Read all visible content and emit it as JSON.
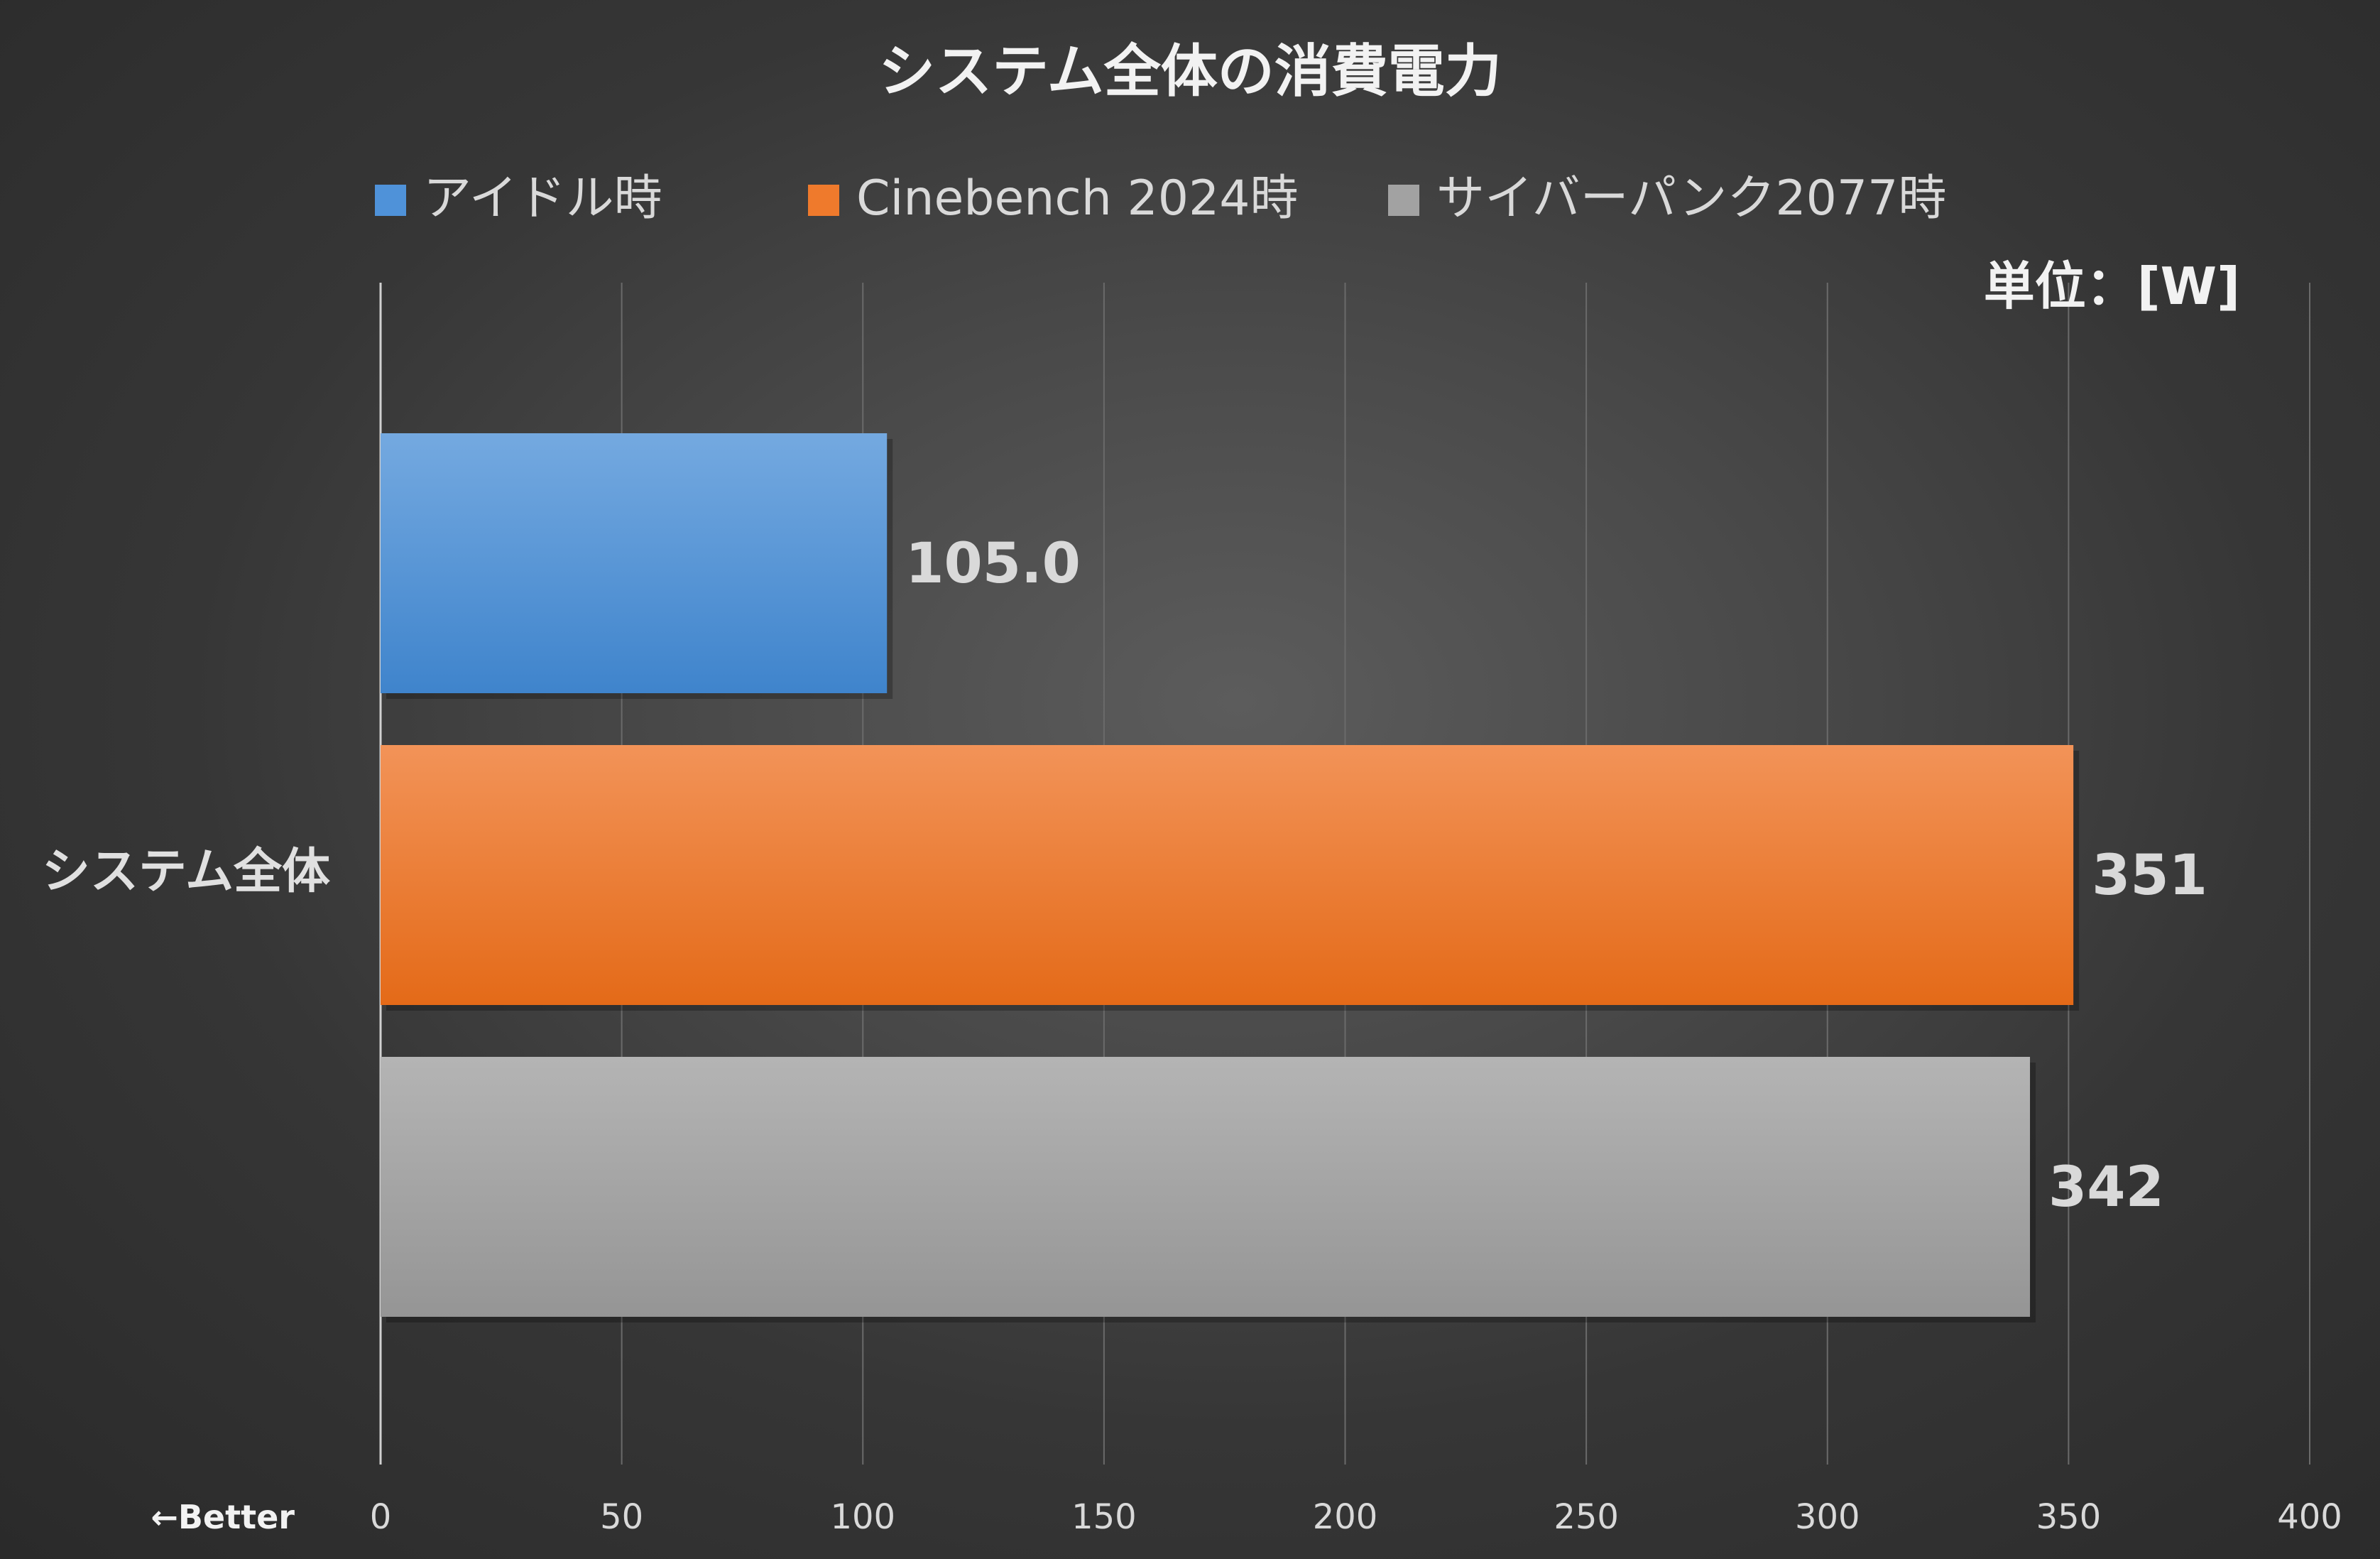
{
  "chart_data": {
    "type": "bar",
    "orientation": "horizontal",
    "title": "システム全体の消費電力",
    "unit_note": "単位：[W]",
    "categories": [
      "システム全体"
    ],
    "series": [
      {
        "name": "アイドル時",
        "values": [
          105.0
        ],
        "value_labels": [
          "105.0"
        ],
        "color": "#4f92d9"
      },
      {
        "name": "Cinebench 2024時",
        "values": [
          351
        ],
        "value_labels": [
          "351"
        ],
        "color": "#ef7a2c"
      },
      {
        "name": "サイバーパンク2077時",
        "values": [
          342
        ],
        "value_labels": [
          "342"
        ],
        "color": "#a2a2a2"
      }
    ],
    "x_ticks": [
      "0",
      "50",
      "100",
      "150",
      "200",
      "250",
      "300",
      "350",
      "400"
    ],
    "xlim": [
      0,
      400
    ],
    "grid": true,
    "legend_position": "top",
    "annotation": "←Better"
  }
}
